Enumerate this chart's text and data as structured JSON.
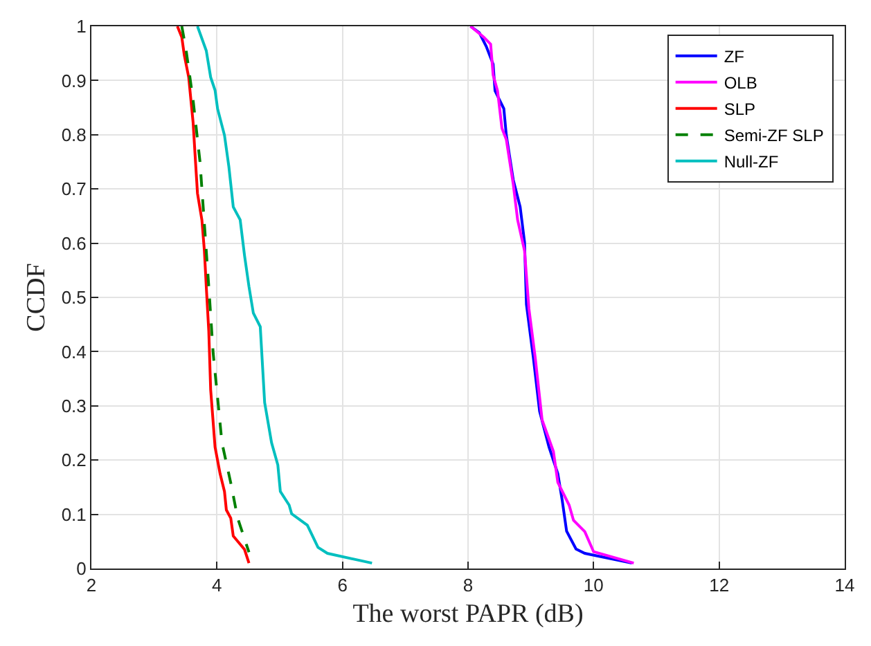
{
  "chart_data": {
    "type": "line",
    "xlabel": "The worst PAPR (dB)",
    "ylabel": "CCDF",
    "xlim": [
      2,
      14
    ],
    "xticks": [
      2,
      4,
      6,
      8,
      10,
      12,
      14
    ],
    "ylim": [
      0,
      1
    ],
    "yticks": [
      0,
      0.1,
      0.2,
      0.3,
      0.4,
      0.5,
      0.6,
      0.7,
      0.8,
      0.9,
      1
    ],
    "grid": true,
    "legend": "top right",
    "line_style": "solid",
    "marker": "none",
    "series": [
      {
        "name": "ZF",
        "color": "#0000ff",
        "x": [
          8.04,
          8.18,
          8.29,
          8.4,
          8.43,
          8.57,
          8.61,
          8.72,
          8.83,
          8.9,
          8.93,
          9.04,
          9.14,
          9.29,
          9.43,
          9.5,
          9.57,
          9.72,
          9.86,
          10.61
        ],
        "values": [
          1.0,
          0.988,
          0.963,
          0.93,
          0.881,
          0.848,
          0.799,
          0.717,
          0.667,
          0.602,
          0.487,
          0.389,
          0.29,
          0.224,
          0.175,
          0.126,
          0.069,
          0.036,
          0.028,
          0.01
        ]
      },
      {
        "name": "OLB",
        "color": "#ff00ff",
        "x": [
          8.04,
          8.25,
          8.36,
          8.4,
          8.47,
          8.54,
          8.61,
          8.72,
          8.79,
          8.9,
          8.97,
          9.07,
          9.18,
          9.36,
          9.43,
          9.61,
          9.68,
          9.86,
          10.0,
          10.64
        ],
        "values": [
          1.0,
          0.98,
          0.967,
          0.91,
          0.881,
          0.812,
          0.791,
          0.709,
          0.643,
          0.586,
          0.479,
          0.389,
          0.274,
          0.216,
          0.159,
          0.117,
          0.089,
          0.068,
          0.031,
          0.01
        ]
      },
      {
        "name": "SLP",
        "color": "#ff0000",
        "x": [
          3.37,
          3.44,
          3.48,
          3.55,
          3.62,
          3.65,
          3.69,
          3.76,
          3.8,
          3.83,
          3.87,
          3.9,
          3.97,
          4.05,
          4.12,
          4.15,
          4.22,
          4.26,
          4.44,
          4.51
        ],
        "values": [
          1.0,
          0.98,
          0.947,
          0.906,
          0.823,
          0.766,
          0.692,
          0.643,
          0.586,
          0.52,
          0.438,
          0.33,
          0.224,
          0.175,
          0.142,
          0.108,
          0.093,
          0.06,
          0.035,
          0.01
        ]
      },
      {
        "name": "Semi-ZF SLP",
        "color": "#008000",
        "line_style": "dashed",
        "x": [
          3.44,
          3.51,
          3.62,
          3.73,
          3.8,
          3.87,
          3.94,
          4.01,
          4.08,
          4.22,
          4.33,
          4.51
        ],
        "values": [
          1.0,
          0.955,
          0.864,
          0.75,
          0.635,
          0.52,
          0.397,
          0.315,
          0.232,
          0.158,
          0.093,
          0.03
        ]
      },
      {
        "name": "Null-ZF",
        "color": "#00bfbf",
        "x": [
          3.69,
          3.83,
          3.9,
          3.97,
          4.01,
          4.12,
          4.19,
          4.26,
          4.37,
          4.44,
          4.51,
          4.58,
          4.69,
          4.76,
          4.87,
          4.97,
          5.01,
          5.15,
          5.19,
          5.44,
          5.61,
          5.76,
          6.47
        ],
        "values": [
          1.0,
          0.955,
          0.906,
          0.882,
          0.848,
          0.799,
          0.741,
          0.667,
          0.643,
          0.577,
          0.52,
          0.471,
          0.446,
          0.306,
          0.232,
          0.191,
          0.142,
          0.117,
          0.101,
          0.08,
          0.039,
          0.028,
          0.01
        ]
      }
    ]
  }
}
